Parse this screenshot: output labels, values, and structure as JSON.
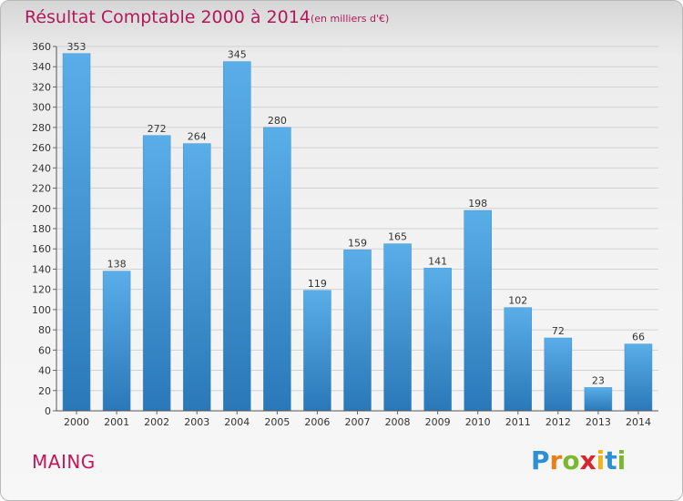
{
  "title": "Résultat Comptable 2000 à 2014",
  "subtitle": "(en milliers d'€)",
  "commune": "MAING",
  "logo": {
    "letters": [
      {
        "char": "P",
        "color": "#2e8fd6"
      },
      {
        "char": "r",
        "color": "#e8801a"
      },
      {
        "char": "o",
        "color": "#7cb82f"
      },
      {
        "char": "x",
        "color": "#d8262d"
      },
      {
        "char": "i",
        "color": "#f2b418"
      },
      {
        "char": "t",
        "color": "#2e8fd6"
      },
      {
        "char": "i",
        "color": "#7cb82f"
      }
    ]
  },
  "colors": {
    "accent": "#b0195a",
    "bar_top": "#5aaee8",
    "bar_bottom": "#2a78b8"
  },
  "chart_data": {
    "type": "bar",
    "categories": [
      "2000",
      "2001",
      "2002",
      "2003",
      "2004",
      "2005",
      "2006",
      "2007",
      "2008",
      "2009",
      "2010",
      "2011",
      "2012",
      "2013",
      "2014"
    ],
    "values": [
      353,
      138,
      272,
      264,
      345,
      280,
      119,
      159,
      165,
      141,
      198,
      102,
      72,
      23,
      66
    ],
    "ylim": [
      0,
      360
    ],
    "yticks": [
      0,
      20,
      40,
      60,
      80,
      100,
      120,
      140,
      160,
      180,
      200,
      220,
      240,
      260,
      280,
      300,
      320,
      340,
      360
    ],
    "grid": true
  }
}
